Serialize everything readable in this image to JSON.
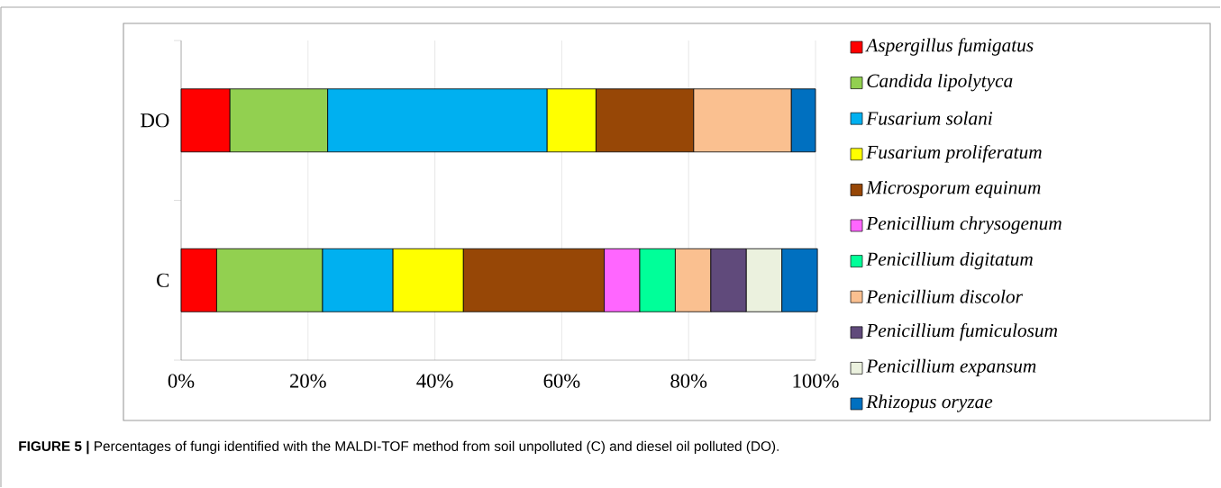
{
  "chart_data": {
    "type": "bar",
    "orientation": "horizontal",
    "stacked": true,
    "categories": [
      "DO",
      "C"
    ],
    "series": [
      {
        "name": "Aspergillus fumigatus",
        "color": "#ff0000",
        "values": [
          7.7,
          5.6
        ]
      },
      {
        "name": "Candida lipolytyca",
        "color": "#92d050",
        "values": [
          15.4,
          16.7
        ]
      },
      {
        "name": "Fusarium solani",
        "color": "#00b0f0",
        "values": [
          34.6,
          11.1
        ]
      },
      {
        "name": "Fusarium proliferatum",
        "color": "#ffff00",
        "values": [
          7.7,
          11.1
        ]
      },
      {
        "name": "Microsporum equinum",
        "color": "#974706",
        "values": [
          15.4,
          22.2
        ]
      },
      {
        "name": "Penicillium chrysogenum",
        "color": "#ff66ff",
        "values": [
          null,
          5.6
        ]
      },
      {
        "name": "Penicillium digitatum",
        "color": "#00ff99",
        "values": [
          null,
          5.6
        ]
      },
      {
        "name": "Penicillium discolor",
        "color": "#fac090",
        "values": [
          15.4,
          5.6
        ]
      },
      {
        "name": "Penicillium fumiculosum",
        "color": "#604a7b",
        "values": [
          null,
          5.6
        ]
      },
      {
        "name": "Penicillium expansum",
        "color": "#ebf1de",
        "values": [
          null,
          5.6
        ]
      },
      {
        "name": "Rhizopus oryzae",
        "color": "#0070c0",
        "values": [
          3.8,
          5.6
        ]
      }
    ],
    "xlim": [
      0,
      100
    ],
    "xticks": [
      {
        "value": 0,
        "label": "0%"
      },
      {
        "value": 20,
        "label": "20%"
      },
      {
        "value": 40,
        "label": "40%"
      },
      {
        "value": 60,
        "label": "60%"
      },
      {
        "value": 80,
        "label": "80%"
      },
      {
        "value": 100,
        "label": "100%"
      }
    ],
    "grid": "x",
    "legend": "right",
    "annotations": [
      "**FIGURE 5 |** Percentages of fungi identified with the MALDI-TOF method from soil unpolluted (C) and diesel oil polluted (DO)."
    ]
  }
}
